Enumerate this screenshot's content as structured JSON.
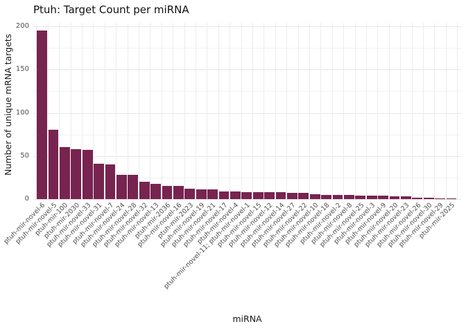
{
  "chart_data": {
    "type": "bar",
    "title": "Ptuh: Target Count per miRNA",
    "xlabel": "miRNA",
    "ylabel": "Number of unique mRNA targets",
    "ylim": [
      0,
      200
    ],
    "yticks": [
      0,
      50,
      100,
      150,
      200
    ],
    "grid": true,
    "legend": "none",
    "bar_color": "#772450",
    "categories": [
      "ptuh-mir-novel-6",
      "ptuh-mir-novel-5",
      "ptuh-mir-100",
      "ptuh-mir-2030",
      "ptuh-mir-novel-33",
      "ptuh-mir-novel-31",
      "ptuh-mir-novel-7",
      "ptuh-mir-novel-24",
      "ptuh-mir-novel-28",
      "ptuh-mir-novel-32",
      "ptuh-mir-novel-13",
      "ptuh-mir-2036",
      "ptuh-mir-novel-16",
      "ptuh-mir-2023",
      "ptuh-mir-novel-19",
      "ptuh-mir-novel-21",
      "ptuh-mir-novel-17",
      "ptuh-mir-novel-4",
      "ptuh-mir-novel-11; ptuh-mir-novel-1",
      "ptuh-mir-novel-15",
      "ptuh-mir-novel-12",
      "ptuh-mir-novel-14",
      "ptuh-mir-novel-27",
      "ptuh-mir-novel-22",
      "ptuh-mir-novel-10",
      "ptuh-mir-novel-18",
      "ptuh-mir-novel-2",
      "ptuh-mir-novel-8",
      "ptuh-mir-novel-25",
      "ptuh-mir-novel-3",
      "ptuh-mir-novel-9",
      "ptuh-mir-novel-20",
      "ptuh-mir-novel-23",
      "ptuh-mir-novel-26",
      "ptuh-mir-novel-30",
      "ptuh-mir-novel-29",
      "ptuh-mir-2025"
    ],
    "values": [
      195,
      80,
      60,
      58,
      57,
      41,
      40,
      28,
      28,
      20,
      18,
      15,
      15,
      12,
      11,
      11,
      9,
      9,
      8,
      8,
      8,
      8,
      7,
      7,
      6,
      5,
      5,
      5,
      4,
      4,
      4,
      3,
      3,
      2,
      2,
      1,
      1
    ]
  },
  "colors": {
    "bar": "#772450",
    "grid_major": "#e6e6e6",
    "grid_minor": "#f2f2f2",
    "tick_text": "#4d4d4d",
    "title_text": "#111111"
  }
}
